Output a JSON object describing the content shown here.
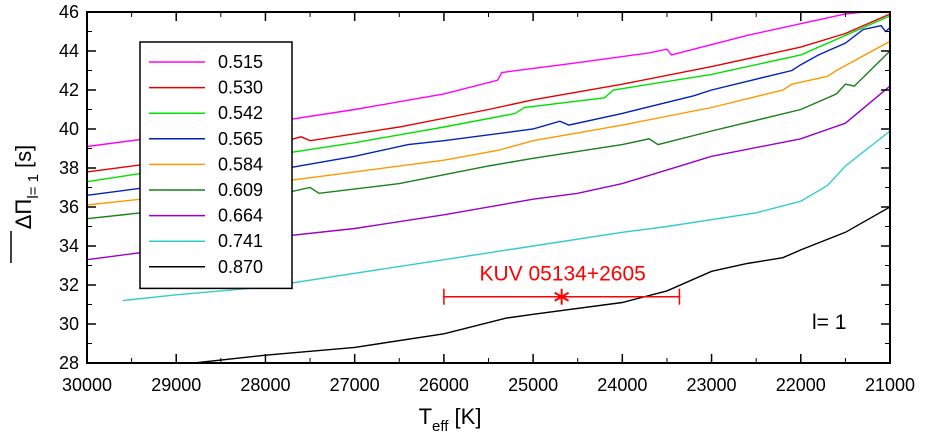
{
  "chart_data": {
    "type": "line",
    "title": "",
    "xlabel": {
      "main": "T",
      "sub": "eff",
      "unit": " [K]"
    },
    "ylabel": {
      "main": "ΔΠ",
      "sub": "l= 1",
      "unit": " [s]"
    },
    "xlim": [
      30000,
      21000
    ],
    "ylim": [
      28,
      46
    ],
    "x_reversed": true,
    "xticks": [
      30000,
      29000,
      28000,
      27000,
      26000,
      25000,
      24000,
      23000,
      22000,
      21000
    ],
    "yticks": [
      28,
      30,
      32,
      34,
      36,
      38,
      40,
      42,
      44,
      46
    ],
    "grid": false,
    "legend_position": "top-left",
    "annotation_l": "l= 1",
    "series": [
      {
        "name": "0.515",
        "color": "#ff00ff",
        "points": [
          [
            30000,
            39.1
          ],
          [
            29000,
            39.7
          ],
          [
            28000,
            40.3
          ],
          [
            27000,
            41.0
          ],
          [
            26000,
            41.8
          ],
          [
            25400,
            42.5
          ],
          [
            25350,
            42.9
          ],
          [
            24500,
            43.4
          ],
          [
            23700,
            43.9
          ],
          [
            23500,
            44.1
          ],
          [
            23450,
            43.8
          ],
          [
            22600,
            44.8
          ],
          [
            22000,
            45.4
          ],
          [
            21500,
            45.9
          ],
          [
            21300,
            46.0
          ]
        ]
      },
      {
        "name": "0.530",
        "color": "#e60000",
        "points": [
          [
            30000,
            37.8
          ],
          [
            29000,
            38.4
          ],
          [
            28000,
            39.1
          ],
          [
            27600,
            39.6
          ],
          [
            27500,
            39.4
          ],
          [
            26500,
            40.1
          ],
          [
            25500,
            41.0
          ],
          [
            25000,
            41.5
          ],
          [
            24000,
            42.3
          ],
          [
            23000,
            43.2
          ],
          [
            22000,
            44.2
          ],
          [
            21500,
            44.9
          ],
          [
            21000,
            45.9
          ]
        ]
      },
      {
        "name": "0.542",
        "color": "#00e000",
        "points": [
          [
            30000,
            37.3
          ],
          [
            29000,
            38.0
          ],
          [
            28000,
            38.6
          ],
          [
            27000,
            39.3
          ],
          [
            26000,
            40.1
          ],
          [
            25200,
            40.8
          ],
          [
            25100,
            41.1
          ],
          [
            24200,
            41.6
          ],
          [
            24100,
            42.0
          ],
          [
            23000,
            42.8
          ],
          [
            22000,
            43.8
          ],
          [
            21000,
            45.8
          ]
        ]
      },
      {
        "name": "0.565",
        "color": "#0022bb",
        "points": [
          [
            30000,
            36.6
          ],
          [
            29000,
            37.2
          ],
          [
            28000,
            37.8
          ],
          [
            27000,
            38.6
          ],
          [
            26400,
            39.2
          ],
          [
            26000,
            39.4
          ],
          [
            25000,
            40.0
          ],
          [
            24700,
            40.4
          ],
          [
            24600,
            40.2
          ],
          [
            24000,
            40.8
          ],
          [
            23200,
            41.7
          ],
          [
            23000,
            42.0
          ],
          [
            22100,
            43.0
          ],
          [
            22000,
            43.3
          ],
          [
            21800,
            43.8
          ],
          [
            21500,
            44.4
          ],
          [
            21300,
            45.1
          ],
          [
            21100,
            45.3
          ],
          [
            21050,
            45.0
          ],
          [
            21000,
            45.2
          ]
        ]
      },
      {
        "name": "0.584",
        "color": "#ff9900",
        "points": [
          [
            30000,
            36.1
          ],
          [
            29000,
            36.6
          ],
          [
            28000,
            37.2
          ],
          [
            27000,
            37.8
          ],
          [
            26000,
            38.4
          ],
          [
            25400,
            38.9
          ],
          [
            25000,
            39.4
          ],
          [
            24000,
            40.2
          ],
          [
            23000,
            41.1
          ],
          [
            22200,
            42.0
          ],
          [
            22100,
            42.3
          ],
          [
            21700,
            42.7
          ],
          [
            21600,
            43.0
          ],
          [
            21000,
            44.5
          ]
        ]
      },
      {
        "name": "0.609",
        "color": "#1a801a",
        "points": [
          [
            30000,
            35.4
          ],
          [
            29000,
            35.9
          ],
          [
            28000,
            36.5
          ],
          [
            27500,
            37.0
          ],
          [
            27400,
            36.7
          ],
          [
            26500,
            37.2
          ],
          [
            25500,
            38.1
          ],
          [
            25000,
            38.5
          ],
          [
            24000,
            39.2
          ],
          [
            23700,
            39.5
          ],
          [
            23600,
            39.2
          ],
          [
            23000,
            39.9
          ],
          [
            22000,
            41.0
          ],
          [
            21600,
            41.8
          ],
          [
            21500,
            42.3
          ],
          [
            21400,
            42.2
          ],
          [
            21000,
            44.0
          ]
        ]
      },
      {
        "name": "0.664",
        "color": "#9900cc",
        "points": [
          [
            30000,
            33.3
          ],
          [
            29000,
            33.9
          ],
          [
            28000,
            34.4
          ],
          [
            27000,
            34.9
          ],
          [
            26000,
            35.6
          ],
          [
            25000,
            36.4
          ],
          [
            24500,
            36.7
          ],
          [
            24000,
            37.2
          ],
          [
            23000,
            38.6
          ],
          [
            22000,
            39.5
          ],
          [
            21500,
            40.3
          ],
          [
            21000,
            42.2
          ]
        ]
      },
      {
        "name": "0.741",
        "color": "#33cccc",
        "points": [
          [
            29600,
            31.2
          ],
          [
            29000,
            31.5
          ],
          [
            28000,
            31.9
          ],
          [
            27000,
            32.6
          ],
          [
            26000,
            33.3
          ],
          [
            25000,
            34.0
          ],
          [
            24000,
            34.7
          ],
          [
            23500,
            35.0
          ],
          [
            22500,
            35.7
          ],
          [
            22000,
            36.3
          ],
          [
            21700,
            37.1
          ],
          [
            21500,
            38.1
          ],
          [
            21000,
            39.9
          ]
        ]
      },
      {
        "name": "0.870",
        "color": "#000000",
        "points": [
          [
            28800,
            28.0
          ],
          [
            28000,
            28.4
          ],
          [
            27000,
            28.8
          ],
          [
            26000,
            29.5
          ],
          [
            25300,
            30.3
          ],
          [
            25000,
            30.5
          ],
          [
            24000,
            31.1
          ],
          [
            23500,
            31.7
          ],
          [
            23000,
            32.7
          ],
          [
            22600,
            33.1
          ],
          [
            22200,
            33.4
          ],
          [
            22000,
            33.8
          ],
          [
            21500,
            34.7
          ],
          [
            21000,
            36.0
          ]
        ]
      }
    ],
    "annotations": [
      {
        "label": "KUV 05134+2605",
        "color": "#ff0000",
        "x": 24680,
        "y": 31.4,
        "xerr_low": 26000,
        "xerr_high": 23360,
        "marker": "star"
      }
    ]
  }
}
